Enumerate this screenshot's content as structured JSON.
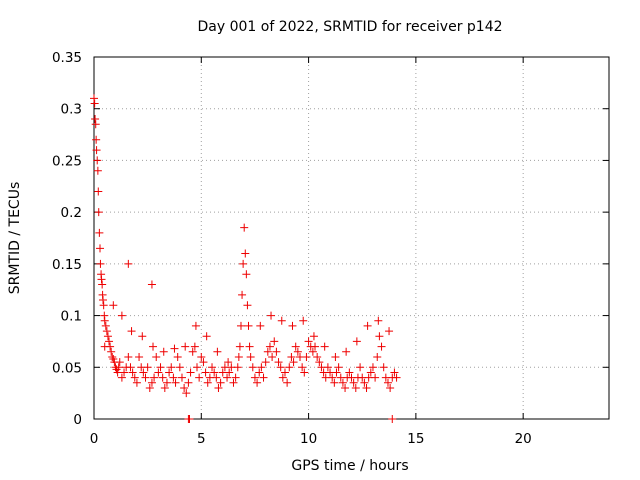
{
  "chart_data": {
    "type": "scatter",
    "title": "Day 001 of 2022, SRMTID for receiver p142",
    "xlabel": "GPS time / hours",
    "ylabel": "SRMTID / TECUs",
    "xlim": [
      0,
      24
    ],
    "ylim": [
      0,
      0.35
    ],
    "xticks": [
      0,
      5,
      10,
      15,
      20
    ],
    "xtick_labels": [
      "0",
      "5",
      "10",
      "15",
      "20"
    ],
    "yticks": [
      0,
      0.05,
      0.1,
      0.15,
      0.2,
      0.25,
      0.3,
      0.35
    ],
    "ytick_labels": [
      "0",
      "0.05",
      "0.1",
      "0.15",
      "0.2",
      "0.25",
      "0.3",
      "0.35"
    ],
    "grid": true,
    "marker": "+",
    "color": "#ee0000",
    "series": [
      {
        "name": "SRMTID",
        "x": [
          0.0,
          0.03,
          0.05,
          0.08,
          0.1,
          0.12,
          0.15,
          0.18,
          0.2,
          0.22,
          0.25,
          0.28,
          0.3,
          0.33,
          0.35,
          0.38,
          0.4,
          0.42,
          0.45,
          0.48,
          0.5,
          0.55,
          0.6,
          0.65,
          0.7,
          0.75,
          0.8,
          0.85,
          0.9,
          0.95,
          1.0,
          1.05,
          1.1,
          1.15,
          1.2,
          1.3,
          1.4,
          1.5,
          1.6,
          1.7,
          1.8,
          1.9,
          2.0,
          2.1,
          2.2,
          2.3,
          2.4,
          2.5,
          2.6,
          2.7,
          2.8,
          2.9,
          3.0,
          3.1,
          3.2,
          3.3,
          3.4,
          3.5,
          3.6,
          3.7,
          3.8,
          3.9,
          4.0,
          4.1,
          4.2,
          4.3,
          4.4,
          4.5,
          4.6,
          4.7,
          4.8,
          4.9,
          5.0,
          5.1,
          5.2,
          5.3,
          5.4,
          5.5,
          5.6,
          5.7,
          5.8,
          5.9,
          6.0,
          6.1,
          6.2,
          6.3,
          6.4,
          6.5,
          6.6,
          6.7,
          6.8,
          6.85,
          6.9,
          6.95,
          7.0,
          7.05,
          7.1,
          7.15,
          7.2,
          7.3,
          7.4,
          7.5,
          7.6,
          7.7,
          7.8,
          7.9,
          8.0,
          8.1,
          8.2,
          8.3,
          8.4,
          8.5,
          8.6,
          8.7,
          8.8,
          8.9,
          9.0,
          9.1,
          9.2,
          9.3,
          9.4,
          9.5,
          9.6,
          9.7,
          9.8,
          9.9,
          10.0,
          10.1,
          10.2,
          10.3,
          10.4,
          10.5,
          10.6,
          10.7,
          10.8,
          10.9,
          11.0,
          11.1,
          11.2,
          11.3,
          11.4,
          11.5,
          11.6,
          11.7,
          11.8,
          11.9,
          12.0,
          12.1,
          12.2,
          12.3,
          12.4,
          12.5,
          12.6,
          12.7,
          12.8,
          12.9,
          13.0,
          13.1,
          13.2,
          13.3,
          13.4,
          13.5,
          13.6,
          13.7,
          13.8,
          13.9,
          14.0,
          14.1,
          0.5,
          0.9,
          1.3,
          1.75,
          2.25,
          2.75,
          3.25,
          3.75,
          4.25,
          4.75,
          5.25,
          5.75,
          6.25,
          6.75,
          7.25,
          7.75,
          8.25,
          8.75,
          9.25,
          9.75,
          10.25,
          10.75,
          11.25,
          11.75,
          12.25,
          12.75,
          13.25,
          13.75,
          1.6,
          2.7,
          4.4,
          4.45,
          13.9
        ],
        "y": [
          0.31,
          0.305,
          0.29,
          0.285,
          0.27,
          0.26,
          0.25,
          0.24,
          0.22,
          0.2,
          0.18,
          0.165,
          0.15,
          0.14,
          0.135,
          0.13,
          0.12,
          0.115,
          0.11,
          0.1,
          0.095,
          0.09,
          0.085,
          0.08,
          0.075,
          0.07,
          0.065,
          0.06,
          0.058,
          0.055,
          0.05,
          0.048,
          0.045,
          0.05,
          0.055,
          0.04,
          0.045,
          0.05,
          0.06,
          0.05,
          0.045,
          0.04,
          0.035,
          0.06,
          0.05,
          0.045,
          0.04,
          0.05,
          0.03,
          0.035,
          0.04,
          0.06,
          0.045,
          0.05,
          0.04,
          0.03,
          0.035,
          0.045,
          0.05,
          0.04,
          0.035,
          0.06,
          0.05,
          0.04,
          0.03,
          0.025,
          0.035,
          0.045,
          0.065,
          0.07,
          0.05,
          0.04,
          0.06,
          0.055,
          0.045,
          0.035,
          0.04,
          0.05,
          0.045,
          0.04,
          0.03,
          0.035,
          0.045,
          0.05,
          0.04,
          0.045,
          0.05,
          0.035,
          0.04,
          0.05,
          0.07,
          0.09,
          0.12,
          0.15,
          0.185,
          0.16,
          0.14,
          0.11,
          0.09,
          0.06,
          0.05,
          0.04,
          0.035,
          0.045,
          0.05,
          0.04,
          0.055,
          0.065,
          0.07,
          0.06,
          0.075,
          0.065,
          0.055,
          0.05,
          0.04,
          0.045,
          0.035,
          0.05,
          0.06,
          0.055,
          0.07,
          0.065,
          0.06,
          0.05,
          0.045,
          0.06,
          0.075,
          0.07,
          0.065,
          0.07,
          0.06,
          0.055,
          0.05,
          0.045,
          0.04,
          0.05,
          0.045,
          0.04,
          0.035,
          0.045,
          0.05,
          0.04,
          0.035,
          0.03,
          0.04,
          0.045,
          0.04,
          0.035,
          0.03,
          0.04,
          0.05,
          0.04,
          0.035,
          0.03,
          0.04,
          0.045,
          0.05,
          0.04,
          0.06,
          0.08,
          0.07,
          0.05,
          0.04,
          0.035,
          0.03,
          0.04,
          0.045,
          0.04,
          0.07,
          0.11,
          0.1,
          0.085,
          0.08,
          0.07,
          0.065,
          0.068,
          0.07,
          0.09,
          0.08,
          0.065,
          0.055,
          0.06,
          0.07,
          0.09,
          0.1,
          0.095,
          0.09,
          0.095,
          0.08,
          0.07,
          0.06,
          0.065,
          0.075,
          0.09,
          0.095,
          0.085,
          0.15,
          0.13,
          0.0,
          0.0,
          0.0
        ]
      }
    ]
  }
}
